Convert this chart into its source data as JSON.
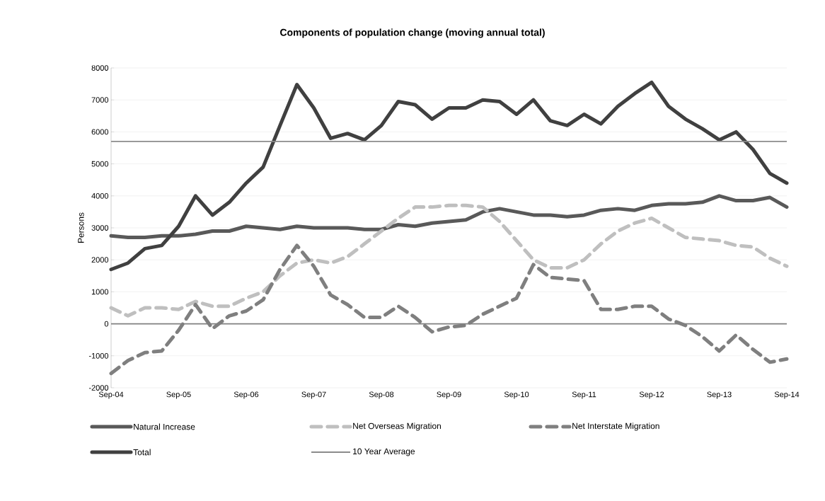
{
  "chart_data": {
    "type": "line",
    "title": "Components of population change (moving annual total)",
    "ylabel": "Persons",
    "categories": [
      "Sep-04",
      null,
      null,
      null,
      "Sep-05",
      null,
      null,
      null,
      "Sep-06",
      null,
      null,
      null,
      "Sep-07",
      null,
      null,
      null,
      "Sep-08",
      null,
      null,
      null,
      "Sep-09",
      null,
      null,
      null,
      "Sep-10",
      null,
      null,
      null,
      "Sep-11",
      null,
      null,
      null,
      "Sep-12",
      null,
      null,
      null,
      "Sep-13",
      null,
      null,
      null,
      "Sep-14"
    ],
    "series": [
      {
        "name": "Natural Increase",
        "color": "#595959",
        "line_style": "solid",
        "values": [
          2750,
          2700,
          2700,
          2750,
          2750,
          2800,
          2900,
          2900,
          3050,
          3000,
          2950,
          3050,
          3000,
          3000,
          3000,
          2950,
          2950,
          3100,
          3050,
          3150,
          3200,
          3250,
          3500,
          3600,
          3500,
          3400,
          3400,
          3350,
          3400,
          3550,
          3600,
          3550,
          3700,
          3750,
          3750,
          3800,
          4000,
          3850,
          3850,
          3950,
          3650
        ]
      },
      {
        "name": "Net Overseas Migration",
        "color": "#bfbfbf",
        "line_style": "dashed",
        "values": [
          500,
          250,
          500,
          500,
          450,
          700,
          550,
          550,
          800,
          1000,
          1500,
          1900,
          2000,
          1900,
          2100,
          2500,
          2900,
          3300,
          3650,
          3650,
          3700,
          3700,
          3650,
          3200,
          2600,
          2000,
          1750,
          1750,
          2000,
          2500,
          2900,
          3150,
          3300,
          3000,
          2700,
          2650,
          2600,
          2450,
          2400,
          2050,
          1800
        ]
      },
      {
        "name": "Net Interstate Migration",
        "color": "#7f7f7f",
        "line_style": "dashed",
        "values": [
          -1550,
          -1150,
          -900,
          -850,
          -200,
          600,
          -150,
          250,
          400,
          750,
          1700,
          2450,
          1800,
          900,
          600,
          200,
          200,
          550,
          200,
          -250,
          -100,
          -50,
          300,
          550,
          800,
          1850,
          1450,
          1400,
          1350,
          450,
          450,
          550,
          550,
          150,
          -50,
          -400,
          -850,
          -350,
          -800,
          -1200,
          -1100
        ]
      },
      {
        "name": "Total",
        "color": "#404040",
        "line_style": "solid",
        "values": [
          1700,
          1900,
          2350,
          2450,
          3050,
          4000,
          3400,
          3800,
          4400,
          4900,
          6200,
          7480,
          6750,
          5800,
          5950,
          5750,
          6200,
          6950,
          6850,
          6400,
          6750,
          6750,
          7000,
          6950,
          6550,
          7000,
          6350,
          6200,
          6550,
          6250,
          6800,
          7200,
          7550,
          6800,
          6400,
          6100,
          5750,
          6000,
          5450,
          4700,
          4400
        ]
      }
    ],
    "ref_lines": [
      {
        "axis": "y",
        "value": 5700,
        "label": "10 Year Average",
        "color": "#8c8c8c",
        "line_style": "solid"
      }
    ],
    "ylim": [
      -2000,
      8000
    ],
    "yticks": [
      -2000,
      -1000,
      0,
      1000,
      2000,
      3000,
      4000,
      5000,
      6000,
      7000,
      8000
    ],
    "grid": "y",
    "legend": "bottom",
    "marker": "none"
  }
}
